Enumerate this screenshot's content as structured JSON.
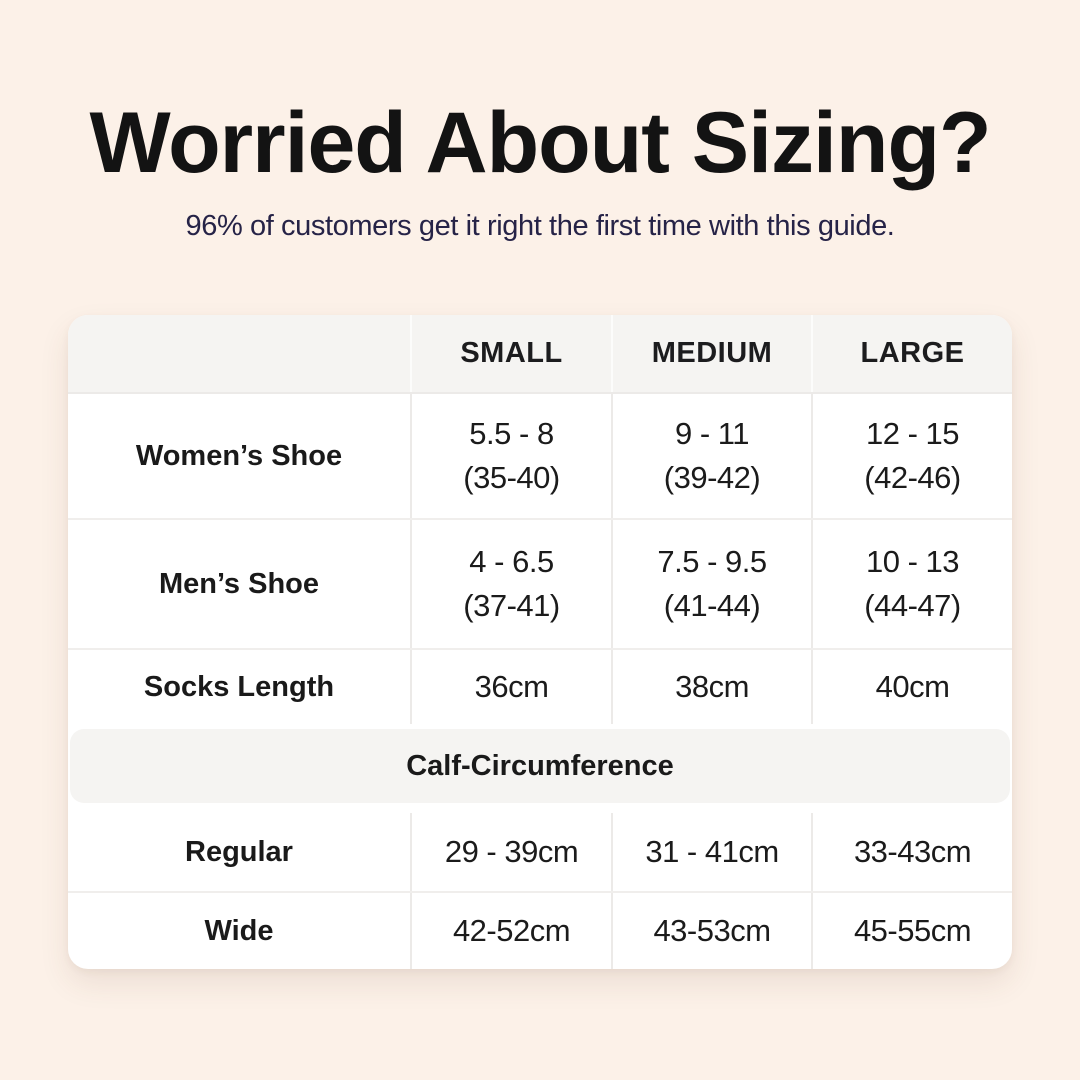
{
  "colors": {
    "page_background": "#fcf1e8",
    "title_text": "#131313",
    "subtitle_text": "#262347",
    "card_background": "#ffffff",
    "header_band_background": "#f5f4f2",
    "divider": "#eceae8",
    "cell_text": "#1b1b1b"
  },
  "header": {
    "title": "Worried About Sizing?",
    "subtitle": "96% of customers get it right the first time with this guide."
  },
  "chart_data": {
    "type": "table",
    "title": "Worried About Sizing?",
    "subtitle": "96% of customers get it right the first time with this guide.",
    "columns": [
      "SMALL",
      "MEDIUM",
      "LARGE"
    ],
    "rows": [
      {
        "label": "Women’s Shoe",
        "cells": [
          [
            "5.5 - 8",
            "(35-40)"
          ],
          [
            "9 - 11",
            "(39-42)"
          ],
          [
            "12 - 15",
            "(42-46)"
          ]
        ]
      },
      {
        "label": "Men’s Shoe",
        "cells": [
          [
            "4 - 6.5",
            "(37-41)"
          ],
          [
            "7.5 - 9.5",
            "(41-44)"
          ],
          [
            "10 - 13",
            "(44-47)"
          ]
        ]
      },
      {
        "label": "Socks Length",
        "cells": [
          [
            "36cm"
          ],
          [
            "38cm"
          ],
          [
            "40cm"
          ]
        ]
      }
    ],
    "section": {
      "header": "Calf-Circumference",
      "rows": [
        {
          "label": "Regular",
          "cells": [
            [
              "29 - 39cm"
            ],
            [
              "31 - 41cm"
            ],
            [
              "33-43cm"
            ]
          ]
        },
        {
          "label": "Wide",
          "cells": [
            [
              "42-52cm"
            ],
            [
              "43-53cm"
            ],
            [
              "45-55cm"
            ]
          ]
        }
      ]
    }
  }
}
